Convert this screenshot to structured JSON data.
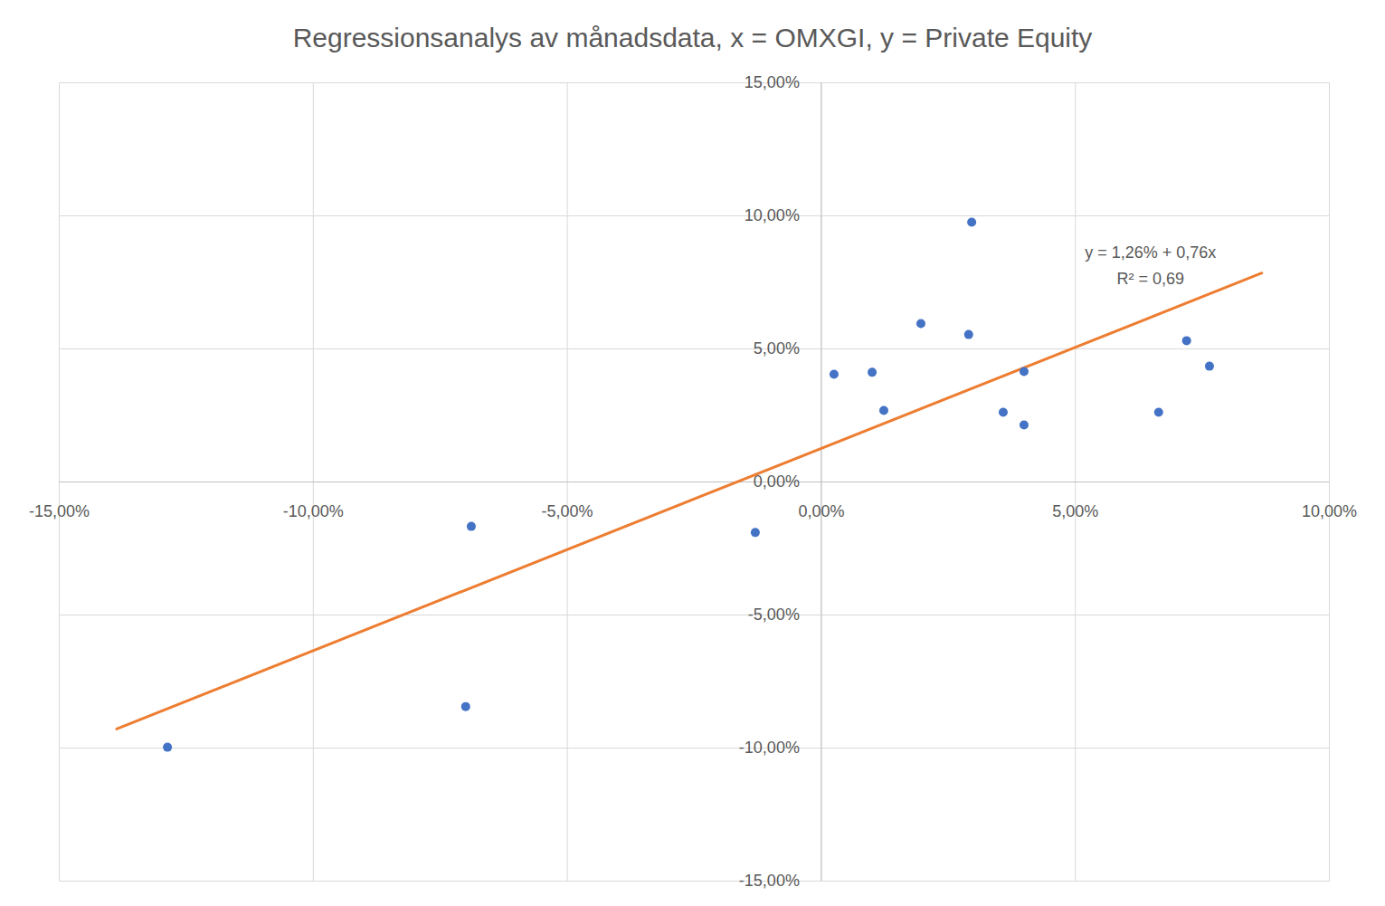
{
  "chart_data": {
    "type": "scatter",
    "title": "Regressionsanalys av månadsdata, x = OMXGI, y = Private Equity",
    "x": [
      -12.87,
      -7.0,
      -6.89,
      -1.3,
      0.25,
      1.0,
      1.23,
      1.96,
      2.9,
      2.96,
      3.58,
      3.99,
      3.99,
      6.64,
      7.19,
      7.64
    ],
    "values": [
      -9.97,
      -8.44,
      -1.67,
      -1.9,
      4.05,
      4.12,
      2.69,
      5.95,
      5.54,
      9.76,
      2.62,
      4.15,
      2.14,
      2.62,
      5.31,
      4.35
    ],
    "color": "#4472c4",
    "marker": "circle",
    "trendline": {
      "x": [
        -13.87,
        8.67
      ],
      "values": [
        -9.28,
        7.85
      ],
      "color": "#ed7d31",
      "line_style": "solid"
    },
    "annotations": [
      "y = 1,26% + 0,76x",
      "R² = 0,69"
    ],
    "xlim": [
      -15,
      10
    ],
    "ylim": [
      -15,
      15
    ],
    "xticks": [
      {
        "value": -15,
        "label": "-15,00%"
      },
      {
        "value": -10,
        "label": "-10,00%"
      },
      {
        "value": -5,
        "label": "-5,00%"
      },
      {
        "value": 0,
        "label": "0,00%"
      },
      {
        "value": 5,
        "label": "5,00%"
      },
      {
        "value": 10,
        "label": "10,00%"
      }
    ],
    "yticks": [
      {
        "value": -15,
        "label": "-15,00%"
      },
      {
        "value": -10,
        "label": "-10,00%"
      },
      {
        "value": -5,
        "label": "-5,00%"
      },
      {
        "value": 0,
        "label": "0,00%"
      },
      {
        "value": 5,
        "label": "5,00%"
      },
      {
        "value": 10,
        "label": "10,00%"
      },
      {
        "value": 15,
        "label": "15,00%"
      }
    ],
    "grid": true
  }
}
